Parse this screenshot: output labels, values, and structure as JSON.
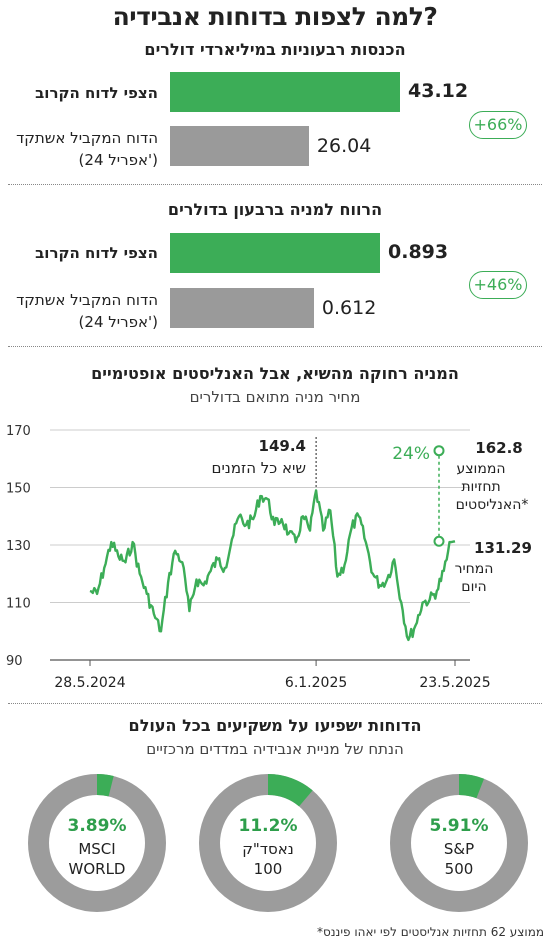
{
  "title": "למה לצפות בדוחות אנבידיה?",
  "revenue": {
    "title": "הכנסות רבעוניות במיליארדי דולרים",
    "expected_label": "הצפי לדוח הקרוב",
    "expected_value": "43.12",
    "previous_label_1": "הדוח המקביל אשתקד",
    "previous_label_2": "(אפריל 24')",
    "previous_value": "26.04",
    "change": "+66%"
  },
  "eps": {
    "title": "הרווח למניה ברבעון בדולרים",
    "expected_label": "הצפי לדוח הקרוב",
    "expected_value": "0.893",
    "previous_label_1": "הדוח המקביל אשתקד",
    "previous_label_2": "(אפריל 24')",
    "previous_value": "0.612",
    "change": "+46%"
  },
  "stock": {
    "title": "המניה רחוקה מהשיא, אבל האנליסטים אופטימיים",
    "subtitle": "מחיר מניה מתואם בדולרים",
    "peak_value": "149.4",
    "peak_label": "שיא כל הזמנים",
    "target_value": "162.8",
    "target_label_1": "הממוצע",
    "target_label_2": "תחזיות",
    "target_label_3": "האנליסטים*",
    "current_value": "131.29",
    "current_label_1": "המחיר",
    "current_label_2": "היום",
    "upside": "24%"
  },
  "indices": {
    "title": "הדוחות ישפיעו על משקיעים בכל העולם",
    "subtitle": "הנתח של מניית אנבידיה במדדים מרכזיים"
  },
  "footnote": "*ממוצע 62 תחזיות אנליסטים לפי יאהו פיננס",
  "colors": {
    "green": "#3cad57",
    "gray": "#9a9a9a",
    "ring": "#9c9c9c"
  },
  "chart_data": [
    {
      "type": "bar",
      "title": "הכנסות רבעוניות במיליארדי דולרים",
      "categories": [
        "הצפי לדוח הקרוב",
        "הדוח המקביל אשתקד (אפריל 24')"
      ],
      "values": [
        43.12,
        26.04
      ],
      "annotation": "+66%"
    },
    {
      "type": "bar",
      "title": "הרווח למניה ברבעון בדולרים",
      "categories": [
        "הצפי לדוח הקרוב",
        "הדוח המקביל אשתקד (אפריל 24')"
      ],
      "values": [
        0.893,
        0.612
      ],
      "annotation": "+46%"
    },
    {
      "type": "line",
      "title": "המניה רחוקה מהשיא, אבל האנליסטים אופטימיים",
      "subtitle": "מחיר מניה מתואם בדולרים",
      "ylim": [
        90,
        170
      ],
      "yticks": [
        90,
        110,
        130,
        150,
        170
      ],
      "xlim": [
        "2024-05-28",
        "2025-05-23"
      ],
      "xticks": [
        "28.5.2024",
        "6.1.2025",
        "23.5.2025"
      ],
      "grid": true,
      "x": [
        "2024-05-28",
        "2024-06-04",
        "2024-06-11",
        "2024-06-18",
        "2024-06-25",
        "2024-07-02",
        "2024-07-09",
        "2024-07-16",
        "2024-07-23",
        "2024-07-30",
        "2024-08-06",
        "2024-08-13",
        "2024-08-20",
        "2024-08-27",
        "2024-09-03",
        "2024-09-10",
        "2024-09-17",
        "2024-09-24",
        "2024-10-01",
        "2024-10-08",
        "2024-10-15",
        "2024-10-22",
        "2024-10-29",
        "2024-11-05",
        "2024-11-12",
        "2024-11-19",
        "2024-11-26",
        "2024-12-03",
        "2024-12-10",
        "2024-12-17",
        "2024-12-24",
        "2024-12-31",
        "2025-01-06",
        "2025-01-13",
        "2025-01-20",
        "2025-01-27",
        "2025-02-03",
        "2025-02-10",
        "2025-02-17",
        "2025-02-24",
        "2025-03-03",
        "2025-03-10",
        "2025-03-17",
        "2025-03-24",
        "2025-03-31",
        "2025-04-07",
        "2025-04-14",
        "2025-04-21",
        "2025-04-28",
        "2025-05-05",
        "2025-05-12",
        "2025-05-19",
        "2025-05-23"
      ],
      "y": [
        114,
        113,
        122,
        131,
        126,
        124,
        131,
        120,
        113,
        106,
        100,
        117,
        128,
        124,
        107,
        118,
        116,
        121,
        125,
        122,
        132,
        140,
        137,
        139,
        147,
        146,
        137,
        139,
        134,
        131,
        140,
        135,
        149,
        135,
        142,
        119,
        123,
        136,
        140,
        131,
        120,
        116,
        118,
        125,
        110,
        97,
        102,
        110,
        111,
        114,
        121,
        131,
        131.29
      ],
      "annotations": [
        {
          "label": "שיא כל הזמנים",
          "x": "2025-01-06",
          "y": 149.4
        },
        {
          "label": "הממוצע תחזיות האנליסטים*",
          "x": "2025-05-23",
          "y": 162.8
        },
        {
          "label": "המחיר היום",
          "x": "2025-05-23",
          "y": 131.29
        },
        {
          "label": "24%"
        }
      ]
    },
    {
      "type": "pie",
      "title": "הנתח של מניית אנבידיה במדדים מרכזיים",
      "categories": [
        "S&P 500",
        "נאסד\"ק 100",
        "MSCI WORLD"
      ],
      "values": [
        5.91,
        11.2,
        3.89
      ],
      "labels": [
        "5.91%",
        "11.2%",
        "3.89%"
      ],
      "names_line1": [
        "S&P",
        "נאסד\"ק",
        "MSCI"
      ],
      "names_line2": [
        "500",
        "100",
        "WORLD"
      ]
    }
  ]
}
